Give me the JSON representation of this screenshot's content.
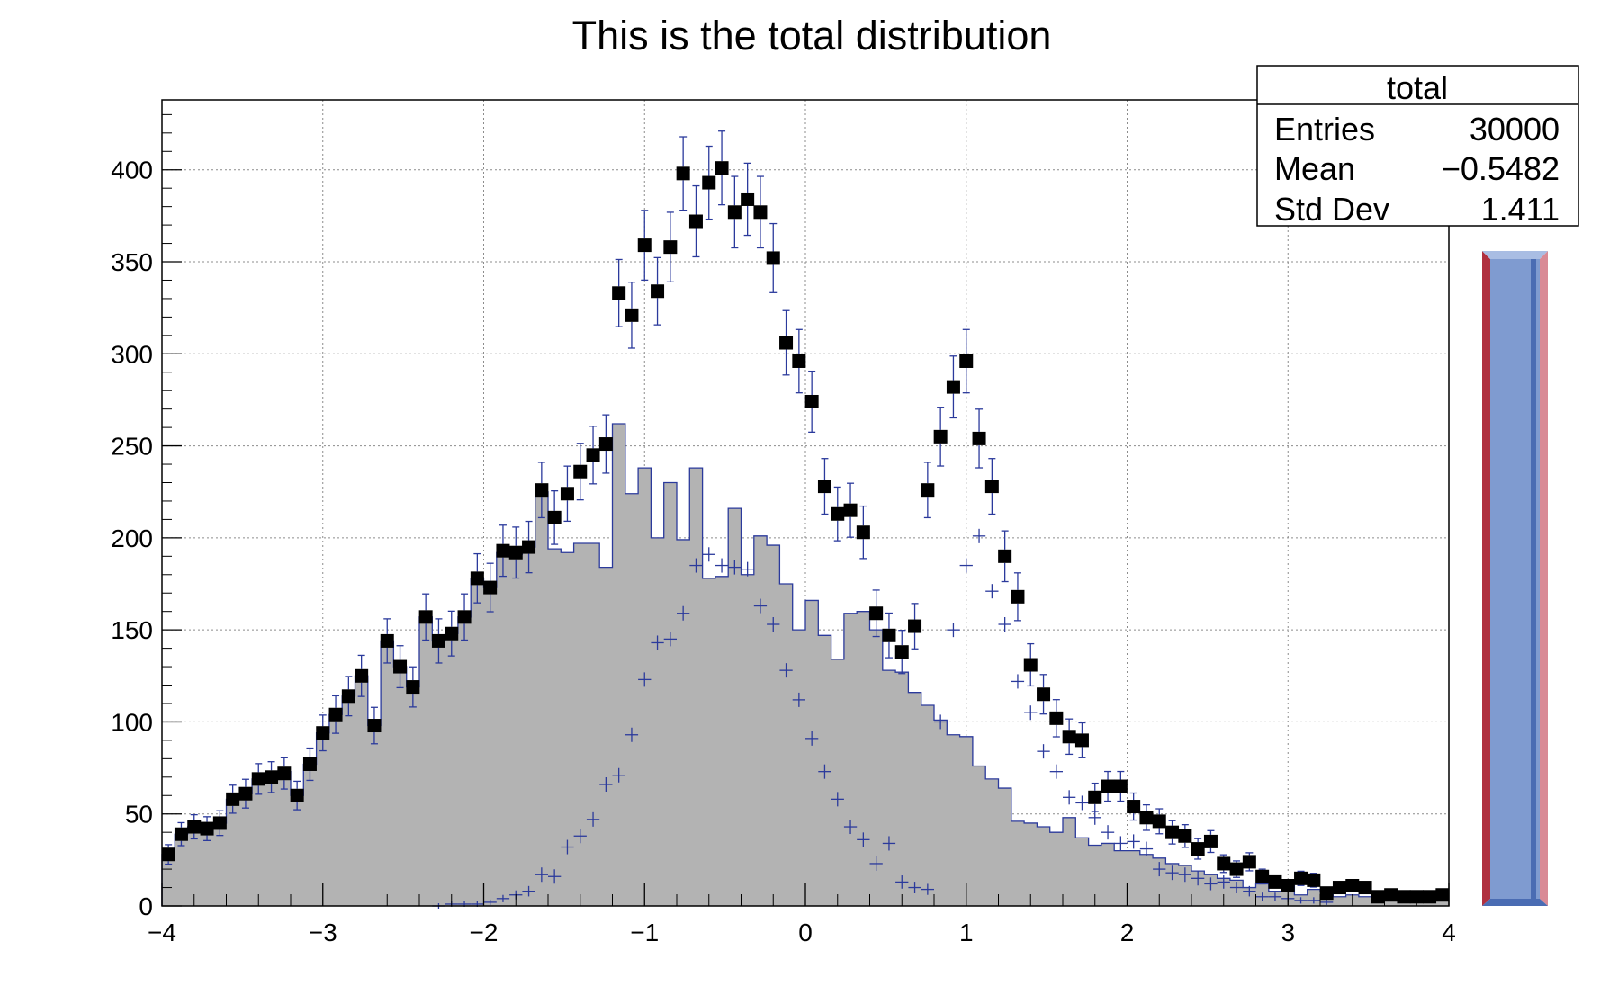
{
  "chart_data": {
    "type": "bar",
    "title": "This is the total distribution",
    "xlabel": "",
    "ylabel": "",
    "xlim": [
      -4,
      4
    ],
    "ylim": [
      0,
      438
    ],
    "grid": true,
    "x_ticks": [
      -4,
      -3,
      -2,
      -1,
      0,
      1,
      2,
      3,
      4
    ],
    "x_tick_labels": [
      "−4",
      "−3",
      "−2",
      "−1",
      "0",
      "1",
      "2",
      "3",
      "4"
    ],
    "y_ticks": [
      0,
      50,
      100,
      150,
      200,
      250,
      300,
      350,
      400
    ],
    "y_tick_labels": [
      "0",
      "50",
      "100",
      "150",
      "200",
      "250",
      "300",
      "350",
      "400"
    ],
    "bin_width": 0.08,
    "series": [
      {
        "style": "filled-histogram",
        "fill_color": "#b3b3b3",
        "line_color": "#2b3a9c",
        "x": [
          -3.96,
          -3.88,
          -3.8,
          -3.72,
          -3.64,
          -3.56,
          -3.48,
          -3.4,
          -3.32,
          -3.24,
          -3.16,
          -3.08,
          -3.0,
          -2.92,
          -2.84,
          -2.76,
          -2.68,
          -2.6,
          -2.52,
          -2.44,
          -2.36,
          -2.28,
          -2.2,
          -2.12,
          -2.04,
          -1.96,
          -1.88,
          -1.8,
          -1.72,
          -1.64,
          -1.56,
          -1.48,
          -1.4,
          -1.32,
          -1.24,
          -1.16,
          -1.08,
          -1.0,
          -0.92,
          -0.84,
          -0.76,
          -0.68,
          -0.6,
          -0.52,
          -0.44,
          -0.36,
          -0.28,
          -0.2,
          -0.12,
          -0.04,
          0.04,
          0.12,
          0.2,
          0.28,
          0.36,
          0.44,
          0.52,
          0.6,
          0.68,
          0.76,
          0.84,
          0.92,
          1.0,
          1.08,
          1.16,
          1.24,
          1.32,
          1.4,
          1.48,
          1.56,
          1.64,
          1.72,
          1.8,
          1.88,
          1.96,
          2.04,
          2.12,
          2.2,
          2.28,
          2.36,
          2.44,
          2.52,
          2.6,
          2.68,
          2.76,
          2.84,
          2.92,
          3.0,
          3.08,
          3.16,
          3.24,
          3.32,
          3.4,
          3.48,
          3.56,
          3.64,
          3.72,
          3.8,
          3.88,
          3.96
        ],
        "values": [
          28,
          39,
          43,
          42,
          45,
          58,
          61,
          69,
          70,
          73,
          60,
          77,
          94,
          104,
          114,
          125,
          98,
          144,
          130,
          119,
          157,
          144,
          148,
          157,
          178,
          173,
          192,
          191,
          195,
          225,
          194,
          192,
          197,
          197,
          184,
          262,
          224,
          238,
          200,
          230,
          199,
          238,
          178,
          179,
          216,
          180,
          201,
          196,
          175,
          150,
          166,
          147,
          134,
          159,
          160,
          150,
          128,
          127,
          116,
          109,
          101,
          93,
          92,
          76,
          69,
          64,
          46,
          45,
          43,
          40,
          48,
          37,
          33,
          34,
          30,
          30,
          28,
          26,
          23,
          22,
          19,
          17,
          15,
          14,
          10,
          12,
          8,
          11,
          6,
          9,
          8,
          5,
          6,
          5,
          4,
          5,
          3,
          3,
          3,
          3
        ]
      },
      {
        "style": "crosses",
        "color": "#2b3a9c",
        "x": [
          -2.28,
          -2.2,
          -2.12,
          -2.04,
          -1.96,
          -1.88,
          -1.8,
          -1.72,
          -1.64,
          -1.56,
          -1.48,
          -1.4,
          -1.32,
          -1.24,
          -1.16,
          -1.08,
          -1.0,
          -0.92,
          -0.84,
          -0.76,
          -0.68,
          -0.6,
          -0.52,
          -0.44,
          -0.36,
          -0.28,
          -0.2,
          -0.12,
          -0.04,
          0.04,
          0.12,
          0.2,
          0.28,
          0.36,
          0.44,
          0.52,
          0.6,
          0.68,
          0.76,
          0.84,
          0.92,
          1.0,
          1.08,
          1.16,
          1.24,
          1.32,
          1.4,
          1.48,
          1.56,
          1.64,
          1.72,
          1.8,
          1.88,
          1.96,
          2.04,
          2.12,
          2.2,
          2.28,
          2.36,
          2.44,
          2.52,
          2.6,
          2.68,
          2.76,
          2.84,
          2.92,
          3.0,
          3.08,
          3.16,
          3.24
        ],
        "values": [
          0,
          1,
          1,
          1,
          2,
          4,
          6,
          8,
          17,
          16,
          32,
          38,
          47,
          66,
          71,
          93,
          123,
          143,
          145,
          159,
          185,
          191,
          185,
          184,
          183,
          163,
          153,
          128,
          112,
          91,
          73,
          58,
          43,
          36,
          23,
          34,
          13,
          10,
          9,
          100,
          150,
          185,
          201,
          171,
          153,
          122,
          105,
          84,
          73,
          59,
          56,
          48,
          40,
          34,
          35,
          31,
          20,
          18,
          17,
          15,
          12,
          13,
          10,
          8,
          5,
          5,
          4,
          3,
          3,
          2
        ]
      },
      {
        "style": "markers-with-errors",
        "marker_color": "#000000",
        "error_color": "#2b3a9c",
        "x": [
          -3.96,
          -3.88,
          -3.8,
          -3.72,
          -3.64,
          -3.56,
          -3.48,
          -3.4,
          -3.32,
          -3.24,
          -3.16,
          -3.08,
          -3.0,
          -2.92,
          -2.84,
          -2.76,
          -2.68,
          -2.6,
          -2.52,
          -2.44,
          -2.36,
          -2.28,
          -2.2,
          -2.12,
          -2.04,
          -1.96,
          -1.88,
          -1.8,
          -1.72,
          -1.64,
          -1.56,
          -1.48,
          -1.4,
          -1.32,
          -1.24,
          -1.16,
          -1.08,
          -1.0,
          -0.92,
          -0.84,
          -0.76,
          -0.68,
          -0.6,
          -0.52,
          -0.44,
          -0.36,
          -0.28,
          -0.2,
          -0.12,
          -0.04,
          0.04,
          0.12,
          0.2,
          0.28,
          0.36,
          0.44,
          0.52,
          0.6,
          0.68,
          0.76,
          0.84,
          0.92,
          1.0,
          1.08,
          1.16,
          1.24,
          1.32,
          1.4,
          1.48,
          1.56,
          1.64,
          1.72,
          1.8,
          1.88,
          1.96,
          2.04,
          2.12,
          2.2,
          2.28,
          2.36,
          2.44,
          2.52,
          2.6,
          2.68,
          2.76,
          2.84,
          2.92,
          3.0,
          3.08,
          3.16,
          3.24,
          3.32,
          3.4,
          3.48,
          3.56,
          3.64,
          3.72,
          3.8,
          3.88,
          3.96
        ],
        "values": [
          28,
          39,
          43,
          42,
          45,
          58,
          61,
          69,
          70,
          72,
          60,
          77,
          94,
          104,
          114,
          125,
          98,
          144,
          130,
          119,
          157,
          144,
          148,
          157,
          178,
          173,
          193,
          192,
          195,
          226,
          211,
          224,
          236,
          245,
          251,
          333,
          321,
          359,
          334,
          358,
          398,
          372,
          393,
          401,
          377,
          384,
          377,
          352,
          306,
          296,
          274,
          228,
          213,
          215,
          203,
          159,
          147,
          138,
          152,
          226,
          255,
          282,
          296,
          254,
          228,
          190,
          168,
          131,
          115,
          102,
          92,
          90,
          59,
          65,
          65,
          54,
          48,
          46,
          40,
          38,
          31,
          35,
          23,
          20,
          24,
          16,
          13,
          11,
          15,
          14,
          7,
          10,
          11,
          10,
          5,
          6,
          5,
          5,
          5,
          6
        ]
      }
    ],
    "stats_box": {
      "title": "total",
      "rows": [
        {
          "label": "Entries",
          "value": "30000"
        },
        {
          "label": "Mean",
          "value": "−0.5482"
        },
        {
          "label": "Std Dev",
          "value": "1.411"
        }
      ]
    },
    "colors": {
      "hist_fill": "#b3b3b3",
      "hist_line": "#2b3a9c",
      "grid": "#8c8c8c",
      "side_bar_fill": "#7f9bd0",
      "side_bar_edge_red": "#b03040",
      "side_bar_edge_pink": "#d98a96",
      "side_bar_edge_blue": "#4a6cb3",
      "side_bar_edge_light": "#a9bde3"
    }
  }
}
